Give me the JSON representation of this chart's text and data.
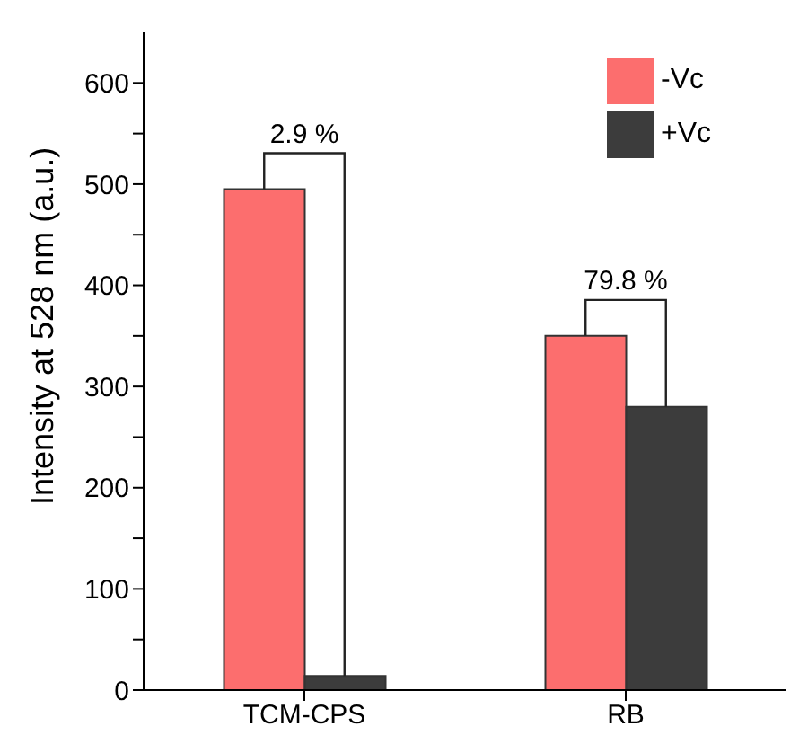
{
  "chart_data": {
    "type": "bar",
    "ylabel": "Intensity at 528 nm (a.u.)",
    "categories": [
      "TCM-CPS",
      "RB"
    ],
    "series": [
      {
        "name": "-Vc",
        "color": "#fc6e6e",
        "values": [
          495,
          350
        ]
      },
      {
        "name": "+Vc",
        "color": "#3c3c3c",
        "values": [
          14,
          280
        ]
      }
    ],
    "ylim": [
      0,
      650
    ],
    "yticks": [
      0,
      {
        "value": 50,
        "label": null
      },
      100,
      {
        "value": 150,
        "label": null
      },
      200,
      {
        "value": 250,
        "label": null
      },
      300,
      {
        "value": 350,
        "label": null
      },
      400,
      {
        "value": 450,
        "label": null
      },
      500,
      {
        "value": 550,
        "label": null
      },
      600
    ],
    "annotations": [
      "2.9 %",
      "79.8 %"
    ],
    "legend": "top right",
    "grid": false
  }
}
